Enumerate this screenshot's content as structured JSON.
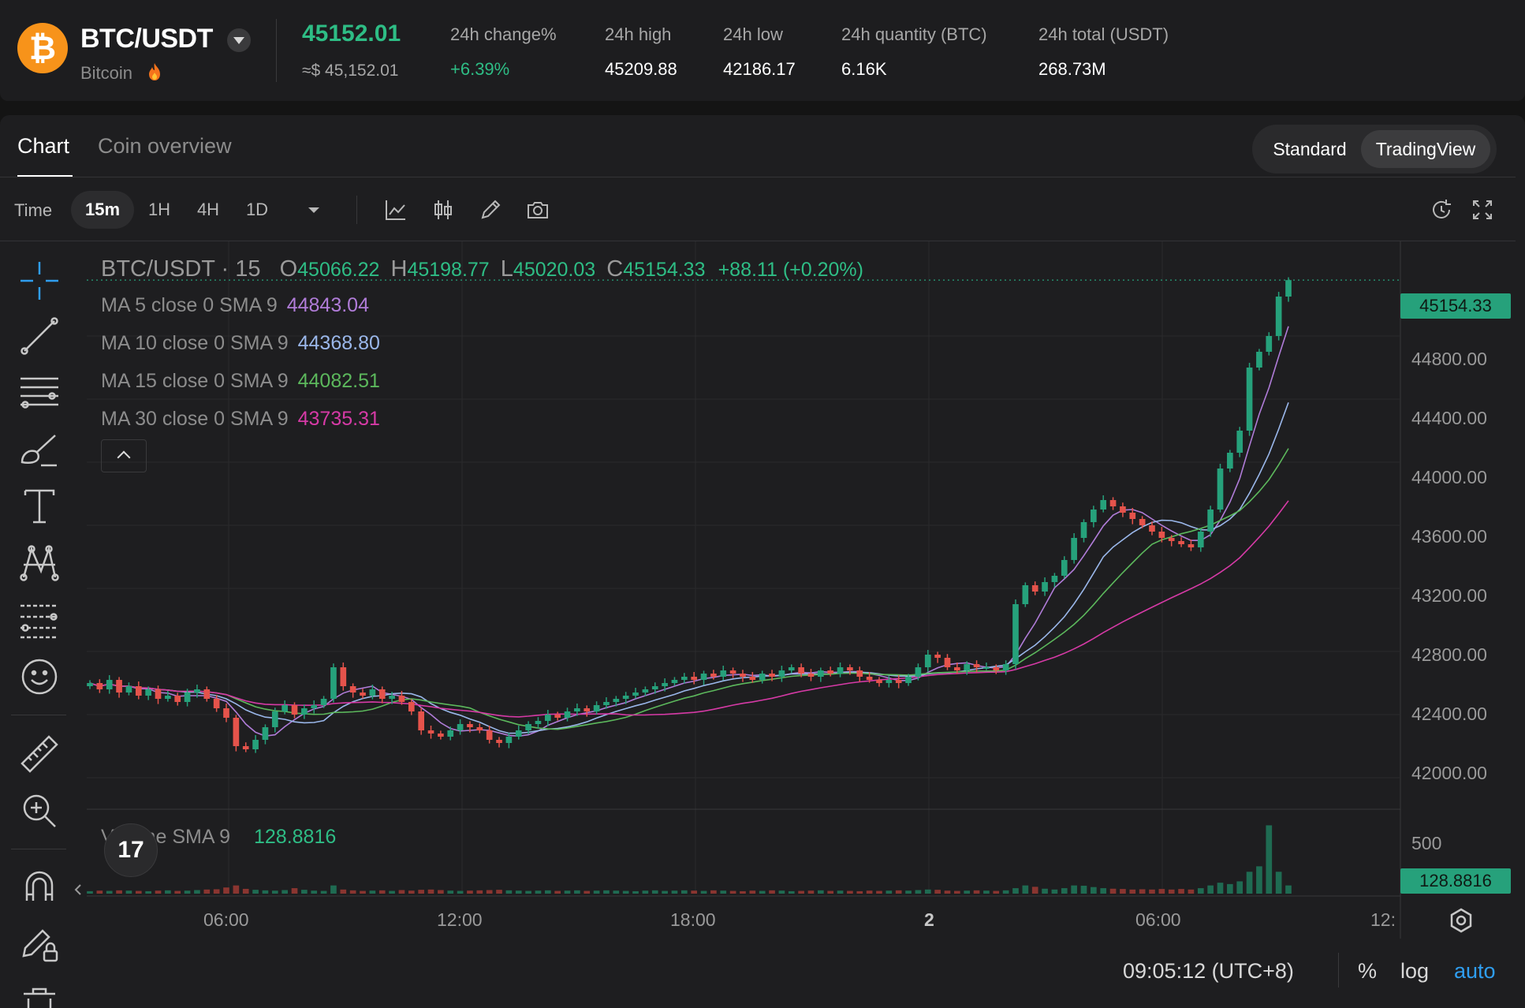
{
  "header": {
    "pair": "BTC/USDT",
    "coin_name": "Bitcoin",
    "logo_glyph": "₿",
    "last_price": "45152.01",
    "price_usd": "≈$ 45,152.01",
    "stats": [
      {
        "label": "24h change%",
        "value": "+6.39%",
        "trend": "up"
      },
      {
        "label": "24h high",
        "value": "45209.88"
      },
      {
        "label": "24h low",
        "value": "42186.17"
      },
      {
        "label": "24h quantity (BTC)",
        "value": "6.16K"
      },
      {
        "label": "24h total (USDT)",
        "value": "268.73M"
      }
    ]
  },
  "tabs": [
    {
      "label": "Chart",
      "active": true
    },
    {
      "label": "Coin overview",
      "active": false
    }
  ],
  "view_toggle": [
    {
      "label": "Standard",
      "active": false
    },
    {
      "label": "TradingView",
      "active": true
    }
  ],
  "toolbar": {
    "time_label": "Time",
    "timeframes": [
      {
        "label": "15m",
        "active": true
      },
      {
        "label": "1H"
      },
      {
        "label": "4H"
      },
      {
        "label": "1D"
      }
    ],
    "icons": [
      "more-timeframes-chevron-icon",
      "indicators-icon",
      "chart-type-candles-icon",
      "draw-pen-icon",
      "screenshot-camera-icon",
      "reset-chart-icon",
      "fullscreen-icon"
    ]
  },
  "drawing_tools": [
    "crosshair-icon",
    "trend-line-icon",
    "horizontal-lines-icon",
    "brush-icon",
    "text-tool-icon",
    "pattern-icon",
    "fib-retracement-icon",
    "emoji-icon",
    "ruler-icon",
    "zoom-in-icon",
    "magnet-icon",
    "lock-drawing-icon",
    "trash-icon"
  ],
  "chart_data": {
    "type": "candlestick",
    "symbol_line": {
      "title": "BTC/USDT · 15",
      "o_label": "O",
      "o": "45066.22",
      "h_label": "H",
      "h": "45198.77",
      "l_label": "L",
      "l": "45020.03",
      "c_label": "C",
      "c": "45154.33",
      "change": "+88.11 (+0.20%)"
    },
    "moving_averages": [
      {
        "label": "MA 5 close 0 SMA 9",
        "value": "44843.04",
        "color": "#b07cd8"
      },
      {
        "label": "MA 10 close 0 SMA 9",
        "value": "44368.80",
        "color": "#9ab7ea"
      },
      {
        "label": "MA 15 close 0 SMA 9",
        "value": "44082.51",
        "color": "#5cb85c"
      },
      {
        "label": "MA 30 close 0 SMA 9",
        "value": "43735.31",
        "color": "#d63aa6"
      }
    ],
    "price_axis": [
      "44800.00",
      "44400.00",
      "44000.00",
      "43600.00",
      "43200.00",
      "42800.00",
      "42400.00",
      "42000.00"
    ],
    "time_axis": [
      "06:00",
      "12:00",
      "18:00",
      "2",
      "06:00",
      "12:"
    ],
    "last_price_tag": "45154.33",
    "volume": {
      "label": "Volume SMA 9",
      "value": "128.8816",
      "axis_label": "500",
      "tag": "128.8816"
    },
    "ylim": [
      41800,
      45400
    ],
    "colors": {
      "up": "#26a17b",
      "down": "#e5534b",
      "volume_up": "#1f6b52",
      "volume_down": "#8a3530"
    },
    "close_path": [
      42600,
      42560,
      42620,
      42540,
      42580,
      42520,
      42560,
      42500,
      42520,
      42480,
      42540,
      42560,
      42500,
      42440,
      42380,
      42200,
      42180,
      42240,
      42320,
      42420,
      42460,
      42400,
      42440,
      42460,
      42500,
      42700,
      42580,
      42540,
      42520,
      42560,
      42500,
      42520,
      42480,
      42420,
      42300,
      42280,
      42260,
      42300,
      42340,
      42320,
      42300,
      42240,
      42220,
      42260,
      42300,
      42340,
      42360,
      42400,
      42380,
      42420,
      42440,
      42420,
      42460,
      42480,
      42500,
      42520,
      42540,
      42560,
      42580,
      42600,
      42620,
      42640,
      42620,
      42660,
      42640,
      42680,
      42660,
      42640,
      42620,
      42660,
      42640,
      42680,
      42700,
      42660,
      42640,
      42680,
      42660,
      42700,
      42680,
      42640,
      42620,
      42600,
      42620,
      42600,
      42640,
      42700,
      42780,
      42760,
      42700,
      42680,
      42720,
      42700,
      42700,
      42680,
      42720,
      43100,
      43220,
      43180,
      43240,
      43280,
      43380,
      43520,
      43620,
      43700,
      43760,
      43720,
      43680,
      43640,
      43600,
      43560,
      43520,
      43500,
      43480,
      43460,
      43560,
      43700,
      43960,
      44060,
      44200,
      44600,
      44700,
      44800,
      45050,
      45154.33
    ],
    "volume_values": [
      18,
      22,
      20,
      24,
      22,
      20,
      18,
      22,
      24,
      20,
      22,
      26,
      30,
      32,
      45,
      60,
      35,
      28,
      24,
      22,
      26,
      40,
      28,
      22,
      20,
      60,
      30,
      24,
      20,
      22,
      24,
      20,
      26,
      22,
      28,
      30,
      26,
      22,
      20,
      22,
      24,
      26,
      28,
      24,
      22,
      20,
      22,
      24,
      20,
      22,
      24,
      20,
      22,
      24,
      22,
      20,
      18,
      22,
      24,
      20,
      22,
      24,
      22,
      20,
      24,
      22,
      20,
      18,
      22,
      20,
      24,
      22,
      18,
      20,
      22,
      24,
      20,
      22,
      20,
      18,
      22,
      20,
      22,
      24,
      22,
      26,
      30,
      28,
      22,
      20,
      22,
      24,
      22,
      20,
      24,
      40,
      60,
      50,
      36,
      30,
      40,
      60,
      58,
      48,
      40,
      36,
      34,
      30,
      32,
      30,
      34,
      30,
      34,
      30,
      40,
      60,
      80,
      70,
      90,
      160,
      200,
      500,
      160,
      60
    ]
  },
  "footer": {
    "time": "09:05:12 (UTC+8)",
    "percent": "%",
    "log": "log",
    "auto": "auto"
  }
}
